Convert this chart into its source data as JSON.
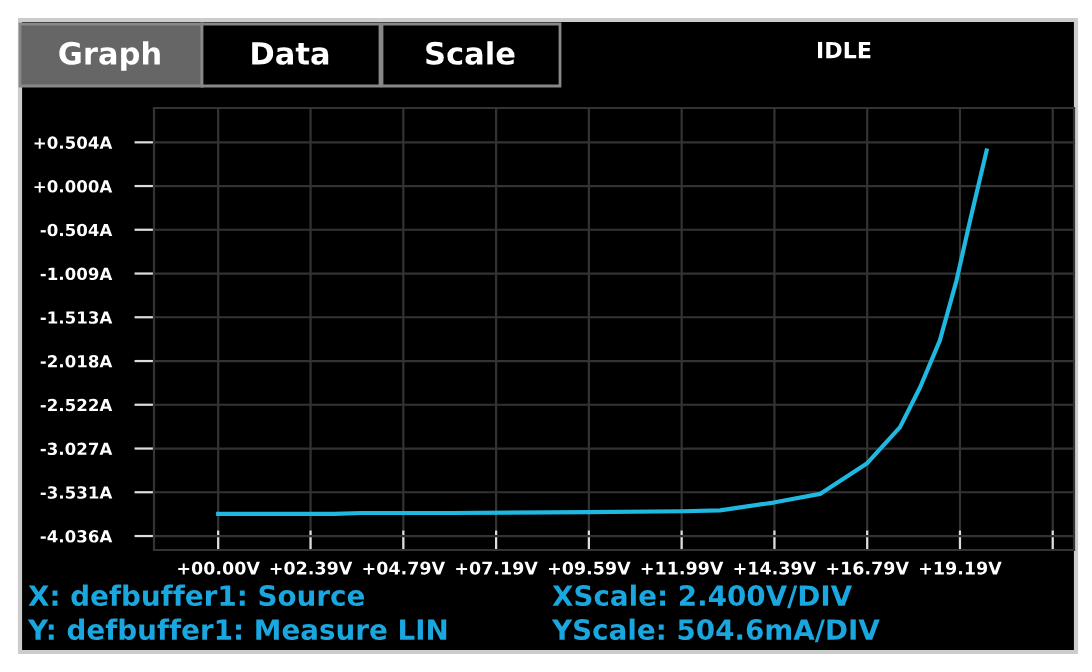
{
  "chart_data": {
    "type": "line",
    "annotations": [
      "Graph",
      "Data",
      "Scale",
      "IDLE",
      "X: defbuffer1: Source",
      "Y: defbuffer1: Measure LIN",
      "XScale: 2.400V/DIV",
      "YScale: 504.6mA/DIV"
    ],
    "series": [
      {
        "color": "#1fb8e0",
        "x": [
          0,
          1.5,
          3.0,
          3.7,
          6.0,
          9.59,
          12.0,
          12.98,
          14.37,
          15.57,
          16.78,
          17.64,
          18.16,
          18.67,
          19.1,
          19.45,
          19.88
        ],
        "values": [
          -3.78,
          -3.78,
          -3.78,
          -3.77,
          -3.77,
          -3.76,
          -3.75,
          -3.74,
          -3.65,
          -3.55,
          -3.2,
          -2.78,
          -2.32,
          -1.78,
          -1.09,
          -0.4,
          0.41
        ]
      }
    ],
    "xlim": [
      -1.66,
      22.14
    ],
    "ylim": [
      -4.197,
      0.9
    ],
    "xticks": [
      {
        "value": 0,
        "label": "+00.00V"
      },
      {
        "value": 2.39,
        "label": "+02.39V"
      },
      {
        "value": 4.79,
        "label": "+04.79V"
      },
      {
        "value": 7.19,
        "label": "+07.19V"
      },
      {
        "value": 9.59,
        "label": "+09.59V"
      },
      {
        "value": 11.99,
        "label": "+11.99V"
      },
      {
        "value": 14.39,
        "label": "+14.39V"
      },
      {
        "value": 16.79,
        "label": "+16.79V"
      },
      {
        "value": 19.19,
        "label": "+19.19V"
      },
      {
        "value": 21.59,
        "label": null
      }
    ],
    "yticks": [
      {
        "value": 0.504,
        "label": "+0.504A"
      },
      {
        "value": 0,
        "label": "+0.000A"
      },
      {
        "value": -0.504,
        "label": "-0.504A"
      },
      {
        "value": -1.009,
        "label": "-1.009A"
      },
      {
        "value": -1.513,
        "label": "-1.513A"
      },
      {
        "value": -2.018,
        "label": "-2.018A"
      },
      {
        "value": -2.522,
        "label": "-2.522A"
      },
      {
        "value": -3.027,
        "label": "-3.027A"
      },
      {
        "value": -3.531,
        "label": "-3.531A"
      },
      {
        "value": -4.036,
        "label": "-4.036A"
      }
    ],
    "grid": true,
    "marker": "none",
    "line_style": "solid"
  }
}
